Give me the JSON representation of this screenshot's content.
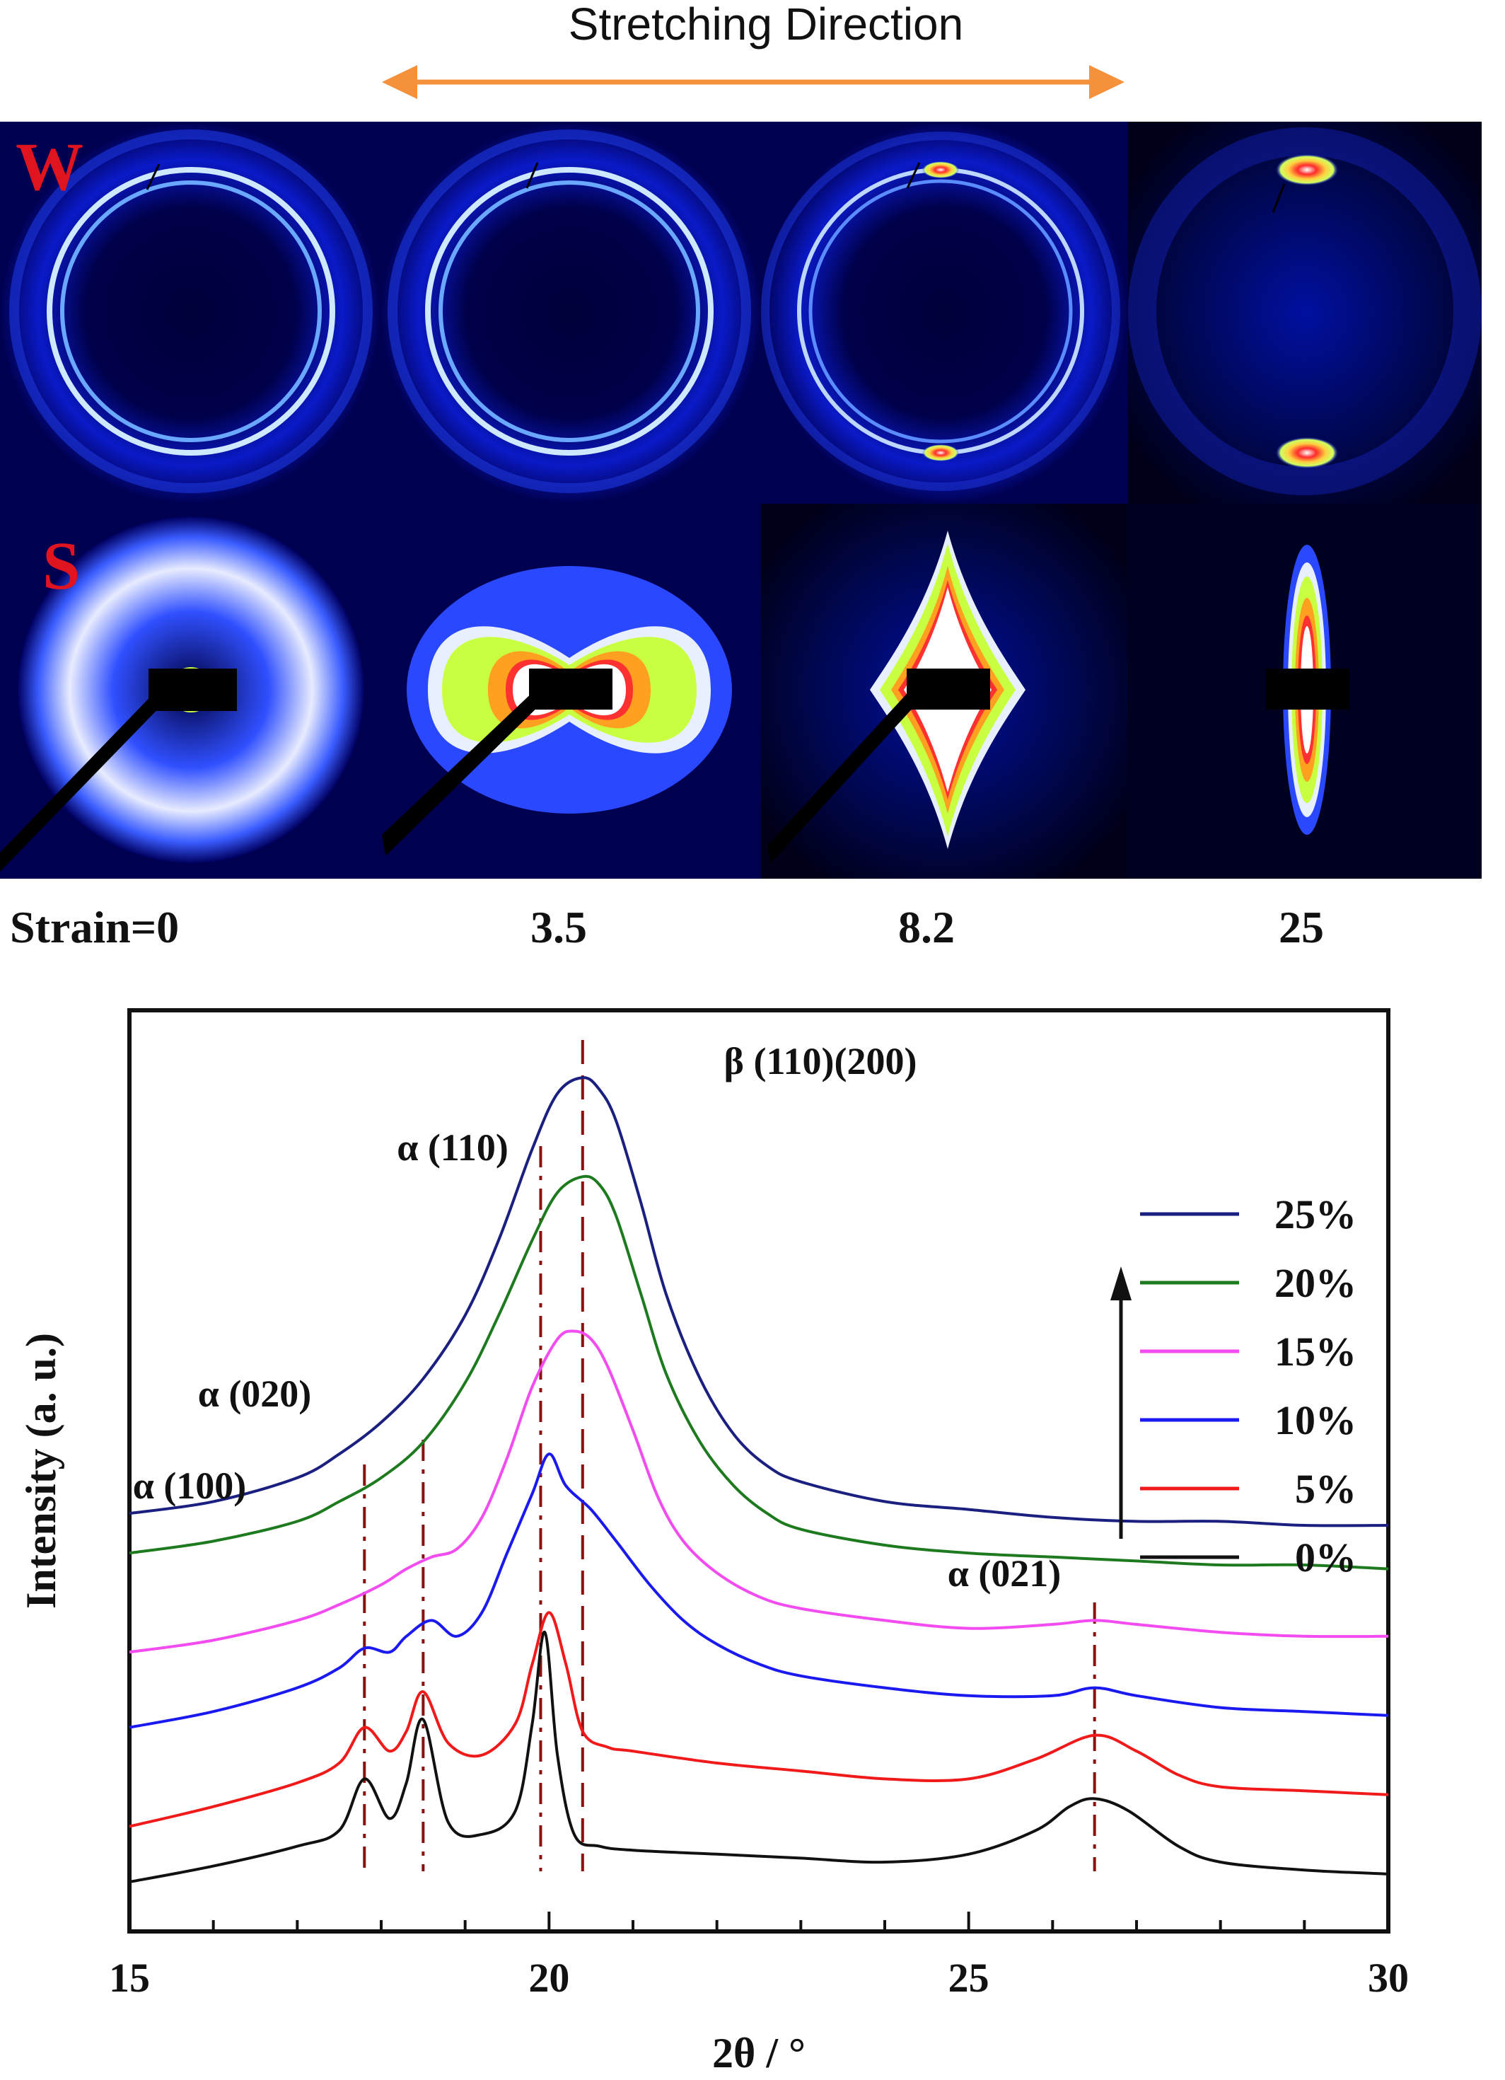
{
  "header": {
    "title": "Stretching Direction",
    "arrow_color": "#F5913A"
  },
  "patterns": {
    "waxs_label": "W",
    "saxs_label": "S",
    "label_color": "#E0141E",
    "strain_labels": [
      "Strain=0",
      "3.5",
      "8.2",
      "25"
    ]
  },
  "chart_data": {
    "type": "line",
    "xlabel": "2θ / °",
    "ylabel": "Intensity (a. u.)",
    "xlim": [
      15,
      30
    ],
    "xticks": [
      15,
      20,
      25,
      30
    ],
    "yticks": false,
    "grid": false,
    "legend": {
      "position": "right",
      "arrow_direction": "up",
      "entries": [
        {
          "label": "25%",
          "color": "#1A1F80"
        },
        {
          "label": "20%",
          "color": "#1E7A1E"
        },
        {
          "label": "15%",
          "color": "#F24BF0"
        },
        {
          "label": "10%",
          "color": "#1A1AF0"
        },
        {
          "label": "5%",
          "color": "#F01A1A"
        },
        {
          "label": "0%",
          "color": "#111111"
        }
      ]
    },
    "peaks": [
      {
        "label": "α (100)",
        "x": 17.8,
        "line": "dash-dot"
      },
      {
        "label": "α (020)",
        "x": 18.5,
        "line": "dash-dot"
      },
      {
        "label": "α (110)",
        "x": 19.9,
        "line": "dash-dot"
      },
      {
        "label": "β (110)(200)",
        "x": 20.4,
        "line": "dashed"
      },
      {
        "label": "α (021)",
        "x": 26.5,
        "line": "dash-dot"
      }
    ],
    "series": [
      {
        "name": "0%",
        "color": "#111111",
        "x": [
          15,
          16,
          17,
          17.5,
          17.8,
          18.1,
          18.3,
          18.5,
          18.8,
          19.2,
          19.6,
          19.8,
          19.95,
          20.1,
          20.3,
          20.6,
          21,
          22,
          23,
          24,
          25,
          25.8,
          26.2,
          26.5,
          26.9,
          27.5,
          28,
          29,
          30
        ],
        "y": [
          0.0,
          0.04,
          0.09,
          0.13,
          0.26,
          0.16,
          0.25,
          0.41,
          0.15,
          0.12,
          0.18,
          0.4,
          0.63,
          0.32,
          0.12,
          0.09,
          0.08,
          0.07,
          0.06,
          0.05,
          0.07,
          0.13,
          0.19,
          0.21,
          0.18,
          0.09,
          0.05,
          0.03,
          0.02
        ]
      },
      {
        "name": "5%",
        "color": "#F01A1A",
        "x": [
          15,
          16,
          17,
          17.5,
          17.8,
          18.1,
          18.3,
          18.5,
          18.8,
          19.2,
          19.6,
          19.8,
          20.0,
          20.2,
          20.4,
          20.7,
          21,
          22,
          23,
          24,
          25,
          25.8,
          26.5,
          27,
          27.5,
          28,
          29,
          30
        ],
        "y": [
          0.14,
          0.19,
          0.25,
          0.3,
          0.39,
          0.33,
          0.38,
          0.48,
          0.35,
          0.32,
          0.4,
          0.55,
          0.68,
          0.55,
          0.38,
          0.34,
          0.33,
          0.3,
          0.28,
          0.26,
          0.26,
          0.31,
          0.37,
          0.33,
          0.27,
          0.24,
          0.23,
          0.22
        ]
      },
      {
        "name": "10%",
        "color": "#1A1AF0",
        "x": [
          15,
          16,
          17,
          17.5,
          17.8,
          18.1,
          18.3,
          18.6,
          18.9,
          19.2,
          19.5,
          19.8,
          20.0,
          20.2,
          20.5,
          20.8,
          21.2,
          21.6,
          22,
          22.5,
          23,
          24,
          25,
          26,
          26.5,
          27,
          28,
          29,
          30
        ],
        "y": [
          0.39,
          0.43,
          0.49,
          0.54,
          0.59,
          0.58,
          0.62,
          0.66,
          0.62,
          0.68,
          0.83,
          0.98,
          1.08,
          1.0,
          0.94,
          0.86,
          0.75,
          0.66,
          0.6,
          0.55,
          0.52,
          0.49,
          0.47,
          0.47,
          0.49,
          0.47,
          0.44,
          0.43,
          0.42
        ]
      },
      {
        "name": "15%",
        "color": "#F24BF0",
        "x": [
          15,
          16,
          17,
          17.5,
          18,
          18.3,
          18.6,
          18.9,
          19.2,
          19.5,
          19.8,
          20.1,
          20.3,
          20.5,
          20.7,
          21,
          21.3,
          21.6,
          22,
          22.5,
          23,
          24,
          25,
          26,
          26.5,
          27,
          28,
          29,
          30
        ],
        "y": [
          0.58,
          0.61,
          0.66,
          0.7,
          0.75,
          0.79,
          0.82,
          0.84,
          0.92,
          1.07,
          1.25,
          1.37,
          1.39,
          1.37,
          1.3,
          1.14,
          0.97,
          0.86,
          0.78,
          0.72,
          0.69,
          0.66,
          0.64,
          0.65,
          0.66,
          0.65,
          0.63,
          0.62,
          0.62
        ]
      },
      {
        "name": "20%",
        "color": "#1E7A1E",
        "x": [
          15,
          16,
          17,
          17.5,
          18,
          18.5,
          19,
          19.4,
          19.8,
          20.1,
          20.4,
          20.6,
          20.8,
          21.1,
          21.4,
          21.8,
          22.2,
          22.6,
          23,
          24,
          25,
          26,
          27,
          28,
          29,
          30
        ],
        "y": [
          0.83,
          0.86,
          0.91,
          0.96,
          1.02,
          1.11,
          1.26,
          1.43,
          1.62,
          1.74,
          1.78,
          1.76,
          1.68,
          1.48,
          1.28,
          1.11,
          1.0,
          0.93,
          0.89,
          0.85,
          0.83,
          0.82,
          0.81,
          0.8,
          0.8,
          0.79
        ]
      },
      {
        "name": "25%",
        "color": "#1A1F80",
        "x": [
          15,
          16,
          17,
          17.5,
          18,
          18.5,
          19,
          19.4,
          19.8,
          20.1,
          20.4,
          20.6,
          20.8,
          21.1,
          21.4,
          21.8,
          22.2,
          22.6,
          23,
          24,
          25,
          26,
          27,
          28,
          29,
          30
        ],
        "y": [
          0.93,
          0.96,
          1.02,
          1.08,
          1.16,
          1.27,
          1.43,
          1.62,
          1.85,
          1.99,
          2.03,
          2.0,
          1.92,
          1.71,
          1.48,
          1.27,
          1.13,
          1.05,
          1.01,
          0.96,
          0.94,
          0.92,
          0.91,
          0.91,
          0.9,
          0.9
        ]
      }
    ]
  }
}
